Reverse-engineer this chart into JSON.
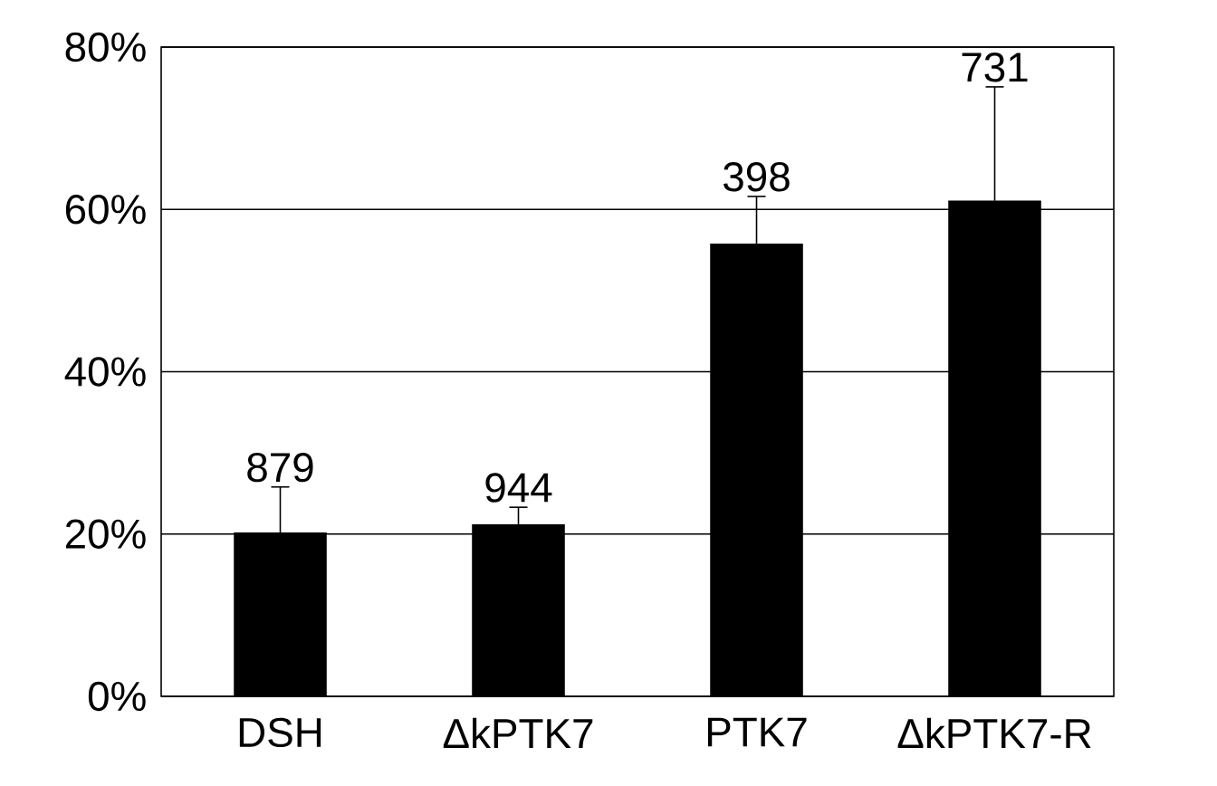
{
  "chart_data": {
    "type": "bar",
    "categories": [
      "DSH",
      "ΔkPTK7",
      "PTK7",
      "ΔkPTK7-R"
    ],
    "values": [
      20.2,
      21.2,
      55.8,
      61.1
    ],
    "errors": [
      5.6,
      2.1,
      5.8,
      14.0
    ],
    "color": "#000000",
    "ylim": [
      0,
      80
    ],
    "yticks": [
      {
        "value": 0,
        "label": "0%"
      },
      {
        "value": 20,
        "label": "20%"
      },
      {
        "value": 40,
        "label": "40%"
      },
      {
        "value": 60,
        "label": "60%"
      },
      {
        "value": 80,
        "label": "80%"
      }
    ],
    "grid": "y",
    "annotations": [
      {
        "text": "879",
        "x": "DSH",
        "y": 25.8
      },
      {
        "text": "944",
        "x": "ΔkPTK7",
        "y": 23.3
      },
      {
        "text": "398",
        "x": "PTK7",
        "y": 61.6
      },
      {
        "text": "731",
        "x": "ΔkPTK7-R",
        "y": 75.1
      }
    ]
  }
}
